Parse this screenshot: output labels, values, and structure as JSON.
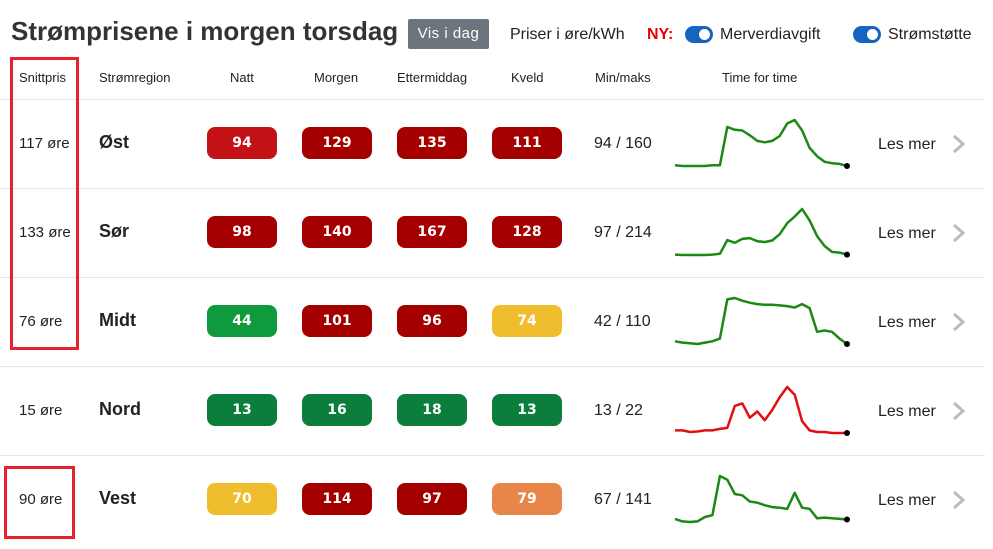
{
  "header": {
    "title": "Strømprisene i morgen torsdag",
    "show_today_button": "Vis i dag",
    "unit_label": "Priser i øre/kWh",
    "new_label": "NY:",
    "toggle_vat_label": "Merverdiavgift",
    "toggle_support_label": "Strømstøtte",
    "toggle_vat_on": true,
    "toggle_support_on": true
  },
  "columns": {
    "avg": "Snittpris",
    "region": "Strømregion",
    "night": "Natt",
    "morning": "Morgen",
    "afternoon": "Ettermiddag",
    "evening": "Kveld",
    "minmax": "Min/maks",
    "hourly": "Time for time"
  },
  "colors": {
    "dark_red": "#a50000",
    "red": "#c31216",
    "green": "#0f9a3d",
    "dark_green": "#0a7e3a",
    "yellow": "#efbd2e",
    "orange": "#e8864a",
    "spark_green": "#1a8a12",
    "spark_red": "#e01010",
    "highlight": "#e8222c"
  },
  "rows": [
    {
      "avg": "117 øre",
      "region": "Øst",
      "night": {
        "value": "94",
        "color": "#c31216"
      },
      "morning": {
        "value": "129",
        "color": "#a50000"
      },
      "afternoon": {
        "value": "135",
        "color": "#a50000"
      },
      "evening": {
        "value": "111",
        "color": "#a50000"
      },
      "minmax": "94 / 160",
      "link": "Les mer",
      "spark_color": "#1a8a12",
      "hourly": [
        95,
        94,
        94,
        94,
        94,
        95,
        95,
        150,
        146,
        145,
        138,
        130,
        128,
        130,
        137,
        155,
        160,
        145,
        120,
        108,
        100,
        98,
        97,
        94
      ]
    },
    {
      "avg": "133 øre",
      "region": "Sør",
      "night": {
        "value": "98",
        "color": "#a50000"
      },
      "morning": {
        "value": "140",
        "color": "#a50000"
      },
      "afternoon": {
        "value": "167",
        "color": "#a50000"
      },
      "evening": {
        "value": "128",
        "color": "#a50000"
      },
      "minmax": "97 / 214",
      "link": "Les mer",
      "spark_color": "#1a8a12",
      "hourly": [
        98,
        97,
        97,
        97,
        97,
        98,
        100,
        135,
        128,
        138,
        140,
        132,
        130,
        134,
        150,
        178,
        195,
        214,
        185,
        145,
        120,
        105,
        103,
        98
      ]
    },
    {
      "avg": "76 øre",
      "region": "Midt",
      "night": {
        "value": "44",
        "color": "#0f9a3d"
      },
      "morning": {
        "value": "101",
        "color": "#a50000"
      },
      "afternoon": {
        "value": "96",
        "color": "#a50000"
      },
      "evening": {
        "value": "74",
        "color": "#efbd2e"
      },
      "minmax": "42 / 110",
      "link": "Les mer",
      "spark_color": "#1a8a12",
      "hourly": [
        46,
        44,
        43,
        42,
        44,
        46,
        50,
        108,
        110,
        106,
        103,
        101,
        100,
        100,
        99,
        98,
        96,
        101,
        95,
        60,
        62,
        60,
        50,
        42
      ]
    },
    {
      "avg": "15 øre",
      "region": "Nord",
      "night": {
        "value": "13",
        "color": "#0a7e3a"
      },
      "morning": {
        "value": "16",
        "color": "#0a7e3a"
      },
      "afternoon": {
        "value": "18",
        "color": "#0a7e3a"
      },
      "evening": {
        "value": "13",
        "color": "#0a7e3a"
      },
      "minmax": "13 / 22",
      "link": "Les mer",
      "spark_color": "#e01010",
      "hourly": [
        13.5,
        13.5,
        13.2,
        13.3,
        13.5,
        13.5,
        13.8,
        14,
        18.3,
        18.8,
        16,
        17.2,
        15.5,
        17.5,
        20,
        22,
        20.5,
        15.3,
        13.5,
        13.2,
        13.2,
        13,
        13,
        13
      ]
    },
    {
      "avg": "90 øre",
      "region": "Vest",
      "night": {
        "value": "70",
        "color": "#efbd2e"
      },
      "morning": {
        "value": "114",
        "color": "#a50000"
      },
      "afternoon": {
        "value": "97",
        "color": "#a50000"
      },
      "evening": {
        "value": "79",
        "color": "#e8864a"
      },
      "minmax": "67 / 141",
      "link": "Les mer",
      "spark_color": "#1a8a12",
      "hourly": [
        72,
        68,
        67,
        68,
        75,
        78,
        141,
        135,
        112,
        110,
        100,
        98,
        94,
        91,
        90,
        88,
        114,
        90,
        88,
        73,
        74,
        73,
        72,
        71
      ]
    }
  ]
}
